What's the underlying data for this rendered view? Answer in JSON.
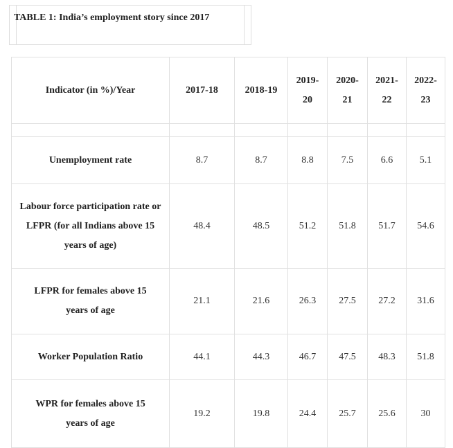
{
  "title": "TABLE 1: India’s employment story since 2017",
  "table": {
    "header": [
      "Indicator (in %)/Year",
      "2017-18",
      "2018-19",
      "2019-20",
      "2020-21",
      "2021-22",
      "2022-23"
    ],
    "rows": [
      {
        "label": "Unemployment rate",
        "values": [
          "8.7",
          "8.7",
          "8.8",
          "7.5",
          "6.6",
          "5.1"
        ]
      },
      {
        "label": "Labour force participation rate or LFPR (for all Indians above 15 years of age)",
        "values": [
          "48.4",
          "48.5",
          "51.2",
          "51.8",
          "51.7",
          "54.6"
        ]
      },
      {
        "label": "LFPR for females above 15 years of age",
        "values": [
          "21.1",
          "21.6",
          "26.3",
          "27.5",
          "27.2",
          "31.6"
        ]
      },
      {
        "label": "Worker Population Ratio",
        "values": [
          "44.1",
          "44.3",
          "46.7",
          "47.5",
          "48.3",
          "51.8"
        ]
      },
      {
        "label": "WPR for females above 15 years of age",
        "values": [
          "19.2",
          "19.8",
          "24.4",
          "25.7",
          "25.6",
          "30"
        ]
      }
    ]
  }
}
